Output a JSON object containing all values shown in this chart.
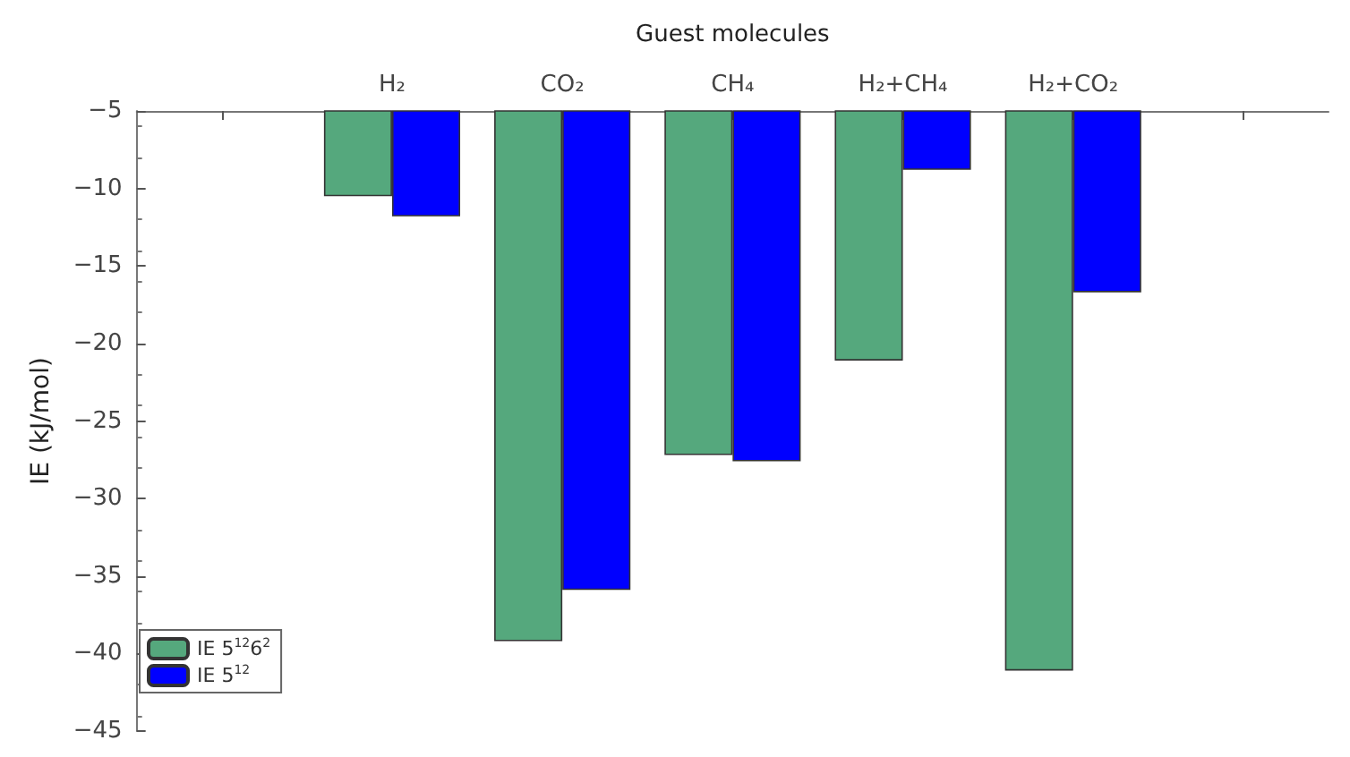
{
  "chart_data": {
    "type": "bar",
    "xlabel": "Guest molecules",
    "ylabel": "IE (kJ/mol)",
    "categories": [
      null,
      "H₂",
      "CO₂",
      "CH₄",
      "H₂+CH₄",
      "H₂+CO₂",
      null
    ],
    "series": [
      {
        "name": "IE 5$^{12}$6$^{2}$",
        "color": "#55a87d",
        "values": [
          null,
          -10.5,
          -39.2,
          -27.2,
          -21.1,
          -41.1,
          null
        ]
      },
      {
        "name": "IE 5$^{12}$",
        "color": "#0000ff",
        "values": [
          null,
          -11.8,
          -35.9,
          -27.6,
          -8.8,
          -16.7,
          null
        ]
      }
    ],
    "ylim": [
      -45,
      -5
    ],
    "yticks": [
      -45,
      -40,
      -35,
      -30,
      -25,
      -20,
      -15,
      -10,
      -5
    ],
    "grid": false,
    "legend": "bottom left"
  }
}
